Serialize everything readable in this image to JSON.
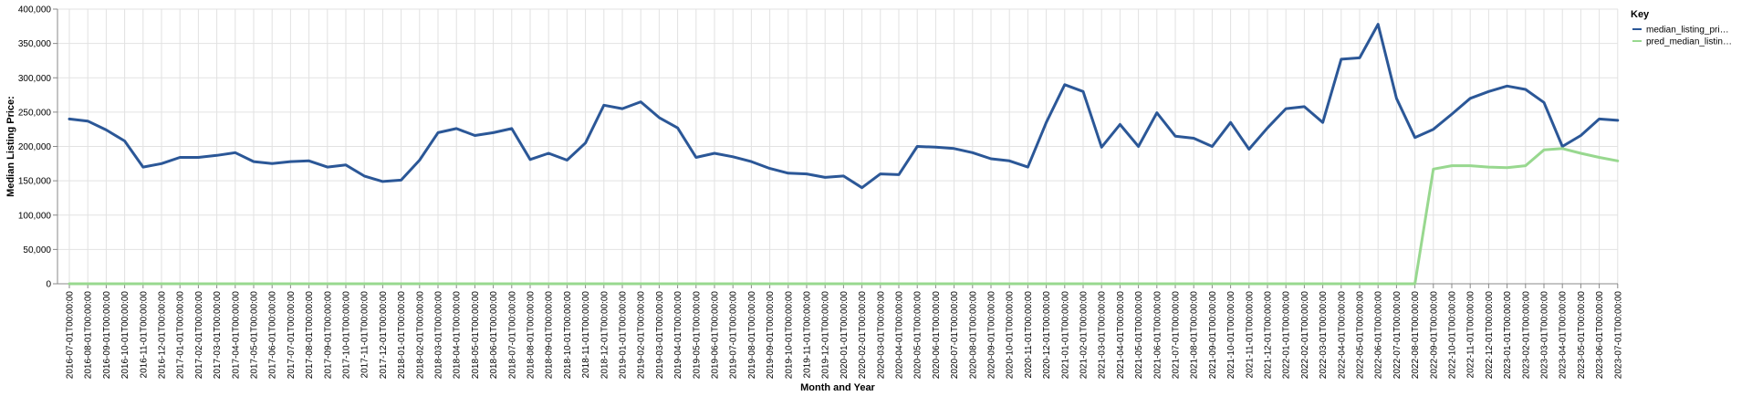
{
  "chart_data": {
    "type": "line",
    "title": "",
    "xlabel": "Month and Year",
    "ylabel": "Median Listing Price:",
    "ylim": [
      0,
      400000
    ],
    "yticks": [
      0,
      50000,
      100000,
      150000,
      200000,
      250000,
      300000,
      350000,
      400000
    ],
    "ytick_labels": [
      "0",
      "50,000",
      "100,000",
      "150,000",
      "200,000",
      "250,000",
      "300,000",
      "350,000",
      "400,000"
    ],
    "grid": true,
    "legend": {
      "title": "Key",
      "position": "right"
    },
    "x": [
      "2016-07-01T00:00:00",
      "2016-08-01T00:00:00",
      "2016-09-01T00:00:00",
      "2016-10-01T00:00:00",
      "2016-11-01T00:00:00",
      "2016-12-01T00:00:00",
      "2017-01-01T00:00:00",
      "2017-02-01T00:00:00",
      "2017-03-01T00:00:00",
      "2017-04-01T00:00:00",
      "2017-05-01T00:00:00",
      "2017-06-01T00:00:00",
      "2017-07-01T00:00:00",
      "2017-08-01T00:00:00",
      "2017-09-01T00:00:00",
      "2017-10-01T00:00:00",
      "2017-11-01T00:00:00",
      "2017-12-01T00:00:00",
      "2018-01-01T00:00:00",
      "2018-02-01T00:00:00",
      "2018-03-01T00:00:00",
      "2018-04-01T00:00:00",
      "2018-05-01T00:00:00",
      "2018-06-01T00:00:00",
      "2018-07-01T00:00:00",
      "2018-08-01T00:00:00",
      "2018-09-01T00:00:00",
      "2018-10-01T00:00:00",
      "2018-11-01T00:00:00",
      "2018-12-01T00:00:00",
      "2019-01-01T00:00:00",
      "2019-02-01T00:00:00",
      "2019-03-01T00:00:00",
      "2019-04-01T00:00:00",
      "2019-05-01T00:00:00",
      "2019-06-01T00:00:00",
      "2019-07-01T00:00:00",
      "2019-08-01T00:00:00",
      "2019-09-01T00:00:00",
      "2019-10-01T00:00:00",
      "2019-11-01T00:00:00",
      "2019-12-01T00:00:00",
      "2020-01-01T00:00:00",
      "2020-02-01T00:00:00",
      "2020-03-01T00:00:00",
      "2020-04-01T00:00:00",
      "2020-05-01T00:00:00",
      "2020-06-01T00:00:00",
      "2020-07-01T00:00:00",
      "2020-08-01T00:00:00",
      "2020-09-01T00:00:00",
      "2020-10-01T00:00:00",
      "2020-11-01T00:00:00",
      "2020-12-01T00:00:00",
      "2021-01-01T00:00:00",
      "2021-02-01T00:00:00",
      "2021-03-01T00:00:00",
      "2021-04-01T00:00:00",
      "2021-05-01T00:00:00",
      "2021-06-01T00:00:00",
      "2021-07-01T00:00:00",
      "2021-08-01T00:00:00",
      "2021-09-01T00:00:00",
      "2021-10-01T00:00:00",
      "2021-11-01T00:00:00",
      "2021-12-01T00:00:00",
      "2022-01-01T00:00:00",
      "2022-02-01T00:00:00",
      "2022-03-01T00:00:00",
      "2022-04-01T00:00:00",
      "2022-05-01T00:00:00",
      "2022-06-01T00:00:00",
      "2022-07-01T00:00:00",
      "2022-08-01T00:00:00",
      "2022-09-01T00:00:00",
      "2022-10-01T00:00:00",
      "2022-11-01T00:00:00",
      "2022-12-01T00:00:00",
      "2023-01-01T00:00:00",
      "2023-02-01T00:00:00",
      "2023-03-01T00:00:00",
      "2023-04-01T00:00:00",
      "2023-05-01T00:00:00",
      "2023-06-01T00:00:00",
      "2023-07-01T00:00:00"
    ],
    "series": [
      {
        "name": "median_listing_pri…",
        "color": "#2b5797",
        "values": [
          240000,
          237000,
          224000,
          208000,
          170000,
          175000,
          184000,
          184000,
          187000,
          191000,
          178000,
          175000,
          178000,
          179000,
          170000,
          173000,
          157000,
          149000,
          151000,
          180000,
          220000,
          226000,
          216000,
          220000,
          226000,
          181000,
          190000,
          180000,
          205000,
          260000,
          255000,
          265000,
          242000,
          227000,
          184000,
          190000,
          185000,
          178000,
          168000,
          161000,
          160000,
          155000,
          157000,
          140000,
          160000,
          159000,
          200000,
          199000,
          197000,
          191000,
          182000,
          179000,
          170000,
          235000,
          290000,
          280000,
          199000,
          232000,
          200000,
          249000,
          215000,
          212000,
          200000,
          235000,
          196000,
          227000,
          255000,
          258000,
          235000,
          327000,
          329000,
          378000,
          270000,
          213000,
          225000,
          247000,
          270000,
          280000,
          288000,
          283000,
          264000,
          200000,
          216000,
          240000,
          238000
        ]
      },
      {
        "name": "pred_median_listin…",
        "color": "#98d88f",
        "values": [
          0,
          0,
          0,
          0,
          0,
          0,
          0,
          0,
          0,
          0,
          0,
          0,
          0,
          0,
          0,
          0,
          0,
          0,
          0,
          0,
          0,
          0,
          0,
          0,
          0,
          0,
          0,
          0,
          0,
          0,
          0,
          0,
          0,
          0,
          0,
          0,
          0,
          0,
          0,
          0,
          0,
          0,
          0,
          0,
          0,
          0,
          0,
          0,
          0,
          0,
          0,
          0,
          0,
          0,
          0,
          0,
          0,
          0,
          0,
          0,
          0,
          0,
          0,
          0,
          0,
          0,
          0,
          0,
          0,
          0,
          0,
          0,
          0,
          0,
          167000,
          172000,
          172000,
          170000,
          169000,
          172000,
          195000,
          197000,
          190000,
          184000,
          179000
        ]
      }
    ]
  }
}
